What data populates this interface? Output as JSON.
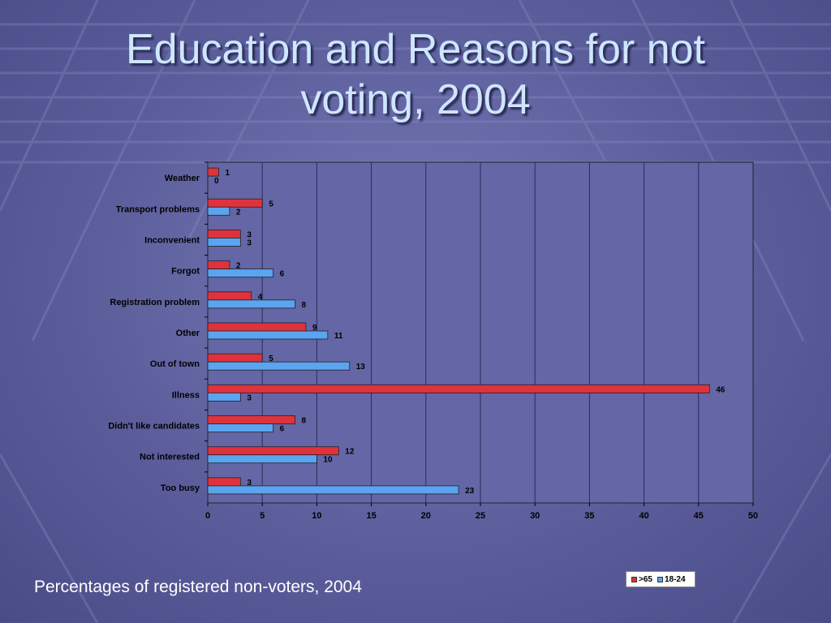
{
  "slide": {
    "title_line1": "Education and Reasons for not",
    "title_line2": "voting, 2004",
    "subtitle": "Percentages of registered non-voters, 2004"
  },
  "colors": {
    "series_over65": "#e0323c",
    "series_18_24": "#5ba4f0",
    "plot_bg": "#6466a6"
  },
  "chart_data": {
    "type": "bar",
    "orientation": "horizontal",
    "title": "",
    "xlabel": "",
    "ylabel": "",
    "xlim": [
      0,
      50
    ],
    "xticks": [
      0,
      5,
      10,
      15,
      20,
      25,
      30,
      35,
      40,
      45,
      50
    ],
    "grid": true,
    "legend_position": "bottom-right",
    "categories": [
      "Weather",
      "Transport problems",
      "Inconvenient",
      "Forgot",
      "Registration problem",
      "Other",
      "Out of town",
      "Illness",
      "Didn't like candidates",
      "Not interested",
      "Too busy"
    ],
    "series": [
      {
        "name": ">65",
        "color": "#e0323c",
        "values": [
          1,
          5,
          3,
          2,
          4,
          9,
          5,
          46,
          8,
          12,
          3
        ]
      },
      {
        "name": "18-24",
        "color": "#5ba4f0",
        "values": [
          0,
          2,
          3,
          6,
          8,
          11,
          13,
          3,
          6,
          10,
          23
        ]
      }
    ]
  }
}
